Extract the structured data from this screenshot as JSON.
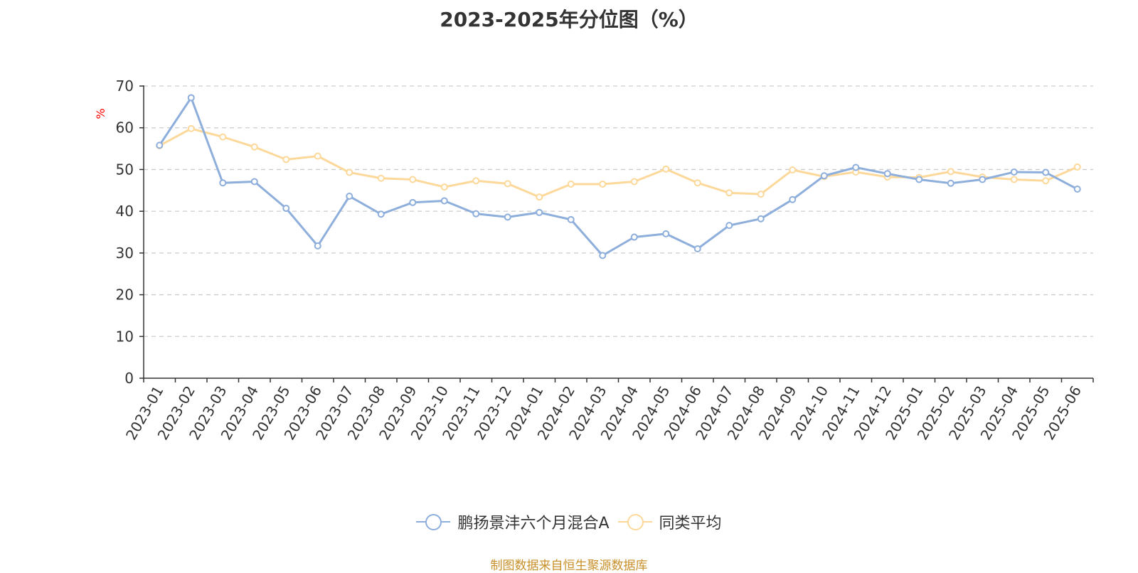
{
  "chart_data": {
    "type": "line",
    "title": "2023-2025年分位图（%）",
    "ylabel": "%",
    "xlabel": "",
    "ylim": [
      0,
      70
    ],
    "yticks": [
      0,
      10,
      20,
      30,
      40,
      50,
      60,
      70
    ],
    "grid": true,
    "legend_position": "bottom-center",
    "categories": [
      "2023-01",
      "2023-02",
      "2023-03",
      "2023-04",
      "2023-05",
      "2023-06",
      "2023-07",
      "2023-08",
      "2023-09",
      "2023-10",
      "2023-11",
      "2023-12",
      "2024-01",
      "2024-02",
      "2024-03",
      "2024-04",
      "2024-05",
      "2024-06",
      "2024-07",
      "2024-08",
      "2024-09",
      "2024-10",
      "2024-11",
      "2024-12",
      "2025-01",
      "2025-02",
      "2025-03",
      "2025-04",
      "2025-05",
      "2025-06"
    ],
    "series": [
      {
        "name": "鹏扬景沣六个月混合A",
        "color": "#8eaedb",
        "values": [
          55.8,
          67.2,
          46.8,
          47.1,
          40.7,
          31.7,
          43.6,
          39.3,
          42.1,
          42.5,
          39.4,
          38.6,
          39.7,
          38.0,
          29.4,
          33.8,
          34.6,
          31.0,
          36.6,
          38.2,
          42.8,
          48.5,
          50.5,
          49.0,
          47.6,
          46.7,
          47.6,
          49.4,
          49.3,
          45.3
        ]
      },
      {
        "name": "同类平均",
        "color": "#fcd89a",
        "values": [
          55.7,
          59.8,
          57.8,
          55.4,
          52.4,
          53.2,
          49.3,
          47.9,
          47.6,
          45.8,
          47.3,
          46.6,
          43.4,
          46.5,
          46.5,
          47.1,
          50.1,
          46.8,
          44.4,
          44.1,
          49.9,
          48.3,
          49.4,
          48.2,
          48.1,
          49.5,
          48.2,
          47.6,
          47.3,
          50.6
        ]
      }
    ]
  },
  "source_text": "制图数据来自恒生聚源数据库"
}
